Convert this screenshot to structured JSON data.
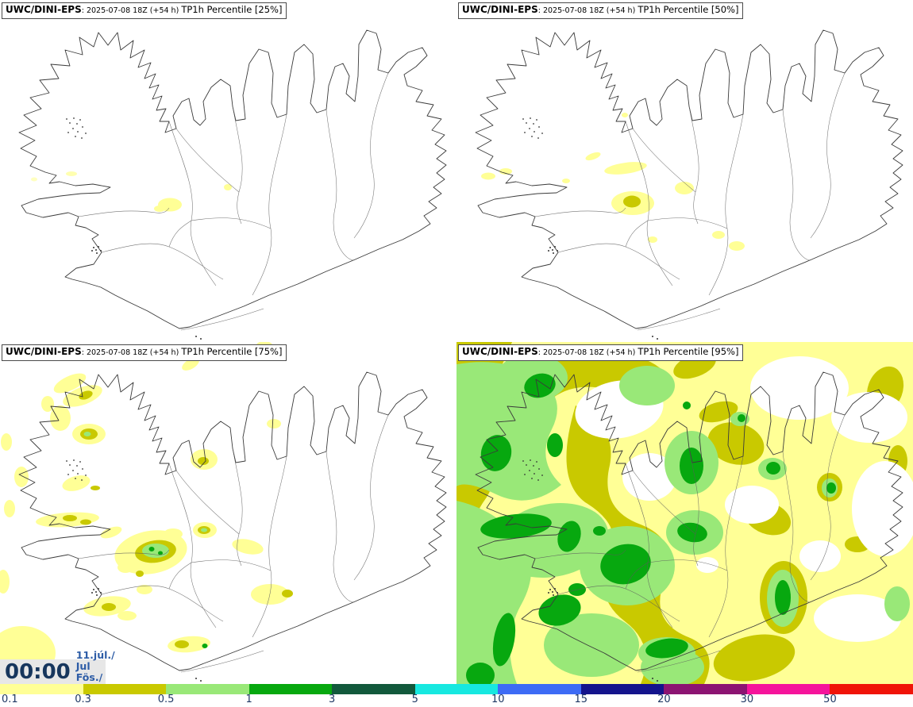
{
  "panels": [
    {
      "model": "UWC/DINI-EPS",
      "run": ": 2025-07-08 18Z (+54 h) ",
      "param": "TP1h Percentile [25%]"
    },
    {
      "model": "UWC/DINI-EPS",
      "run": ": 2025-07-08 18Z (+54 h) ",
      "param": "TP1h Percentile [50%]"
    },
    {
      "model": "UWC/DINI-EPS",
      "run": ": 2025-07-08 18Z (+54 h) ",
      "param": "TP1h Percentile [75%]"
    },
    {
      "model": "UWC/DINI-EPS",
      "run": ": 2025-07-08 18Z (+54 h) ",
      "param": "TP1h Percentile [95%]"
    }
  ],
  "clock": {
    "time": "00:00",
    "date": "11.júl./ Jul",
    "day": "Fös./ Fri"
  },
  "legend": {
    "labels": [
      "0.1",
      "0.3",
      "0.5",
      "1",
      "3",
      "5",
      "10",
      "15",
      "20",
      "30",
      "50"
    ],
    "colors": [
      "#ffff96",
      "#c9c900",
      "#99e878",
      "#07a80f",
      "#12593c",
      "#17e8e0",
      "#3d6bf5",
      "#14148c",
      "#8c1472",
      "#f5149b",
      "#f01408"
    ],
    "label_color": "#1f3864"
  },
  "map": {
    "outline_color": "#3a3a3a",
    "region": "Iceland"
  }
}
